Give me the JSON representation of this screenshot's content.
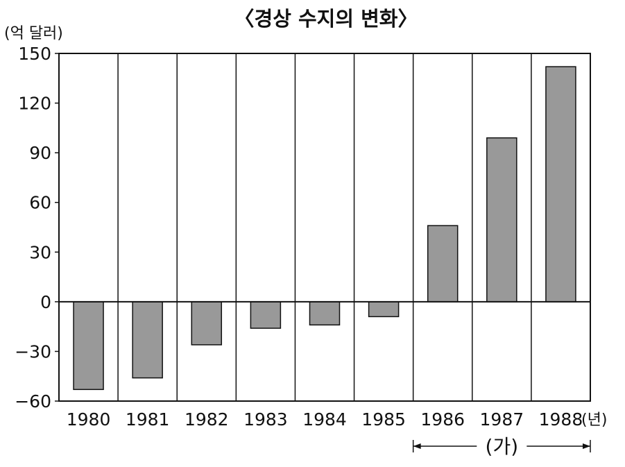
{
  "chart_data": {
    "type": "bar",
    "title": "〈경상 수지의 변화〉",
    "unit_label": "(억 달러)",
    "x_unit_label": "(년)",
    "categories": [
      "1980",
      "1981",
      "1982",
      "1983",
      "1984",
      "1985",
      "1986",
      "1987",
      "1988"
    ],
    "values": [
      -53,
      -46,
      -26,
      -16,
      -14,
      -9,
      46,
      99,
      142
    ],
    "ylim": [
      -60,
      150
    ],
    "yticks": [
      "150",
      "120",
      "90",
      "60",
      "30",
      "0",
      "−30",
      "−60"
    ],
    "ytick_values": [
      150,
      120,
      90,
      60,
      30,
      0,
      -30,
      -60
    ],
    "grid": "vertical separators per category",
    "bar_color": "#999999",
    "period_annotation": {
      "label": "(가)",
      "start": "1986",
      "end": "1988"
    }
  }
}
